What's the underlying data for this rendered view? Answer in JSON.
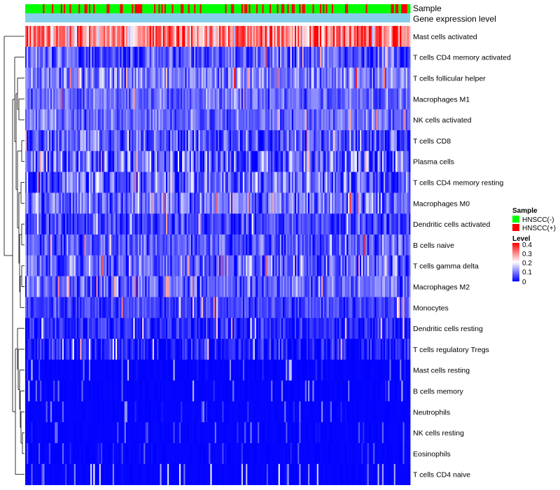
{
  "chart_data": {
    "type": "heatmap",
    "title": "",
    "annotation_tracks": [
      {
        "key": "sample",
        "label": "Sample"
      },
      {
        "key": "level",
        "label": "Gene expression level"
      }
    ],
    "rows": [
      {
        "name": "Mast cells activated",
        "mean": 0.3,
        "spread": 0.1
      },
      {
        "name": "T cells CD4 memory activated",
        "mean": 0.06,
        "spread": 0.06
      },
      {
        "name": "T cells follicular helper",
        "mean": 0.1,
        "spread": 0.06
      },
      {
        "name": "Macrophages M1",
        "mean": 0.08,
        "spread": 0.05
      },
      {
        "name": "NK cells activated",
        "mean": 0.08,
        "spread": 0.05
      },
      {
        "name": "T cells CD8",
        "mean": 0.06,
        "spread": 0.07
      },
      {
        "name": "Plasma cells",
        "mean": 0.07,
        "spread": 0.09
      },
      {
        "name": "T cells CD4 memory resting",
        "mean": 0.07,
        "spread": 0.08
      },
      {
        "name": "Macrophages M0",
        "mean": 0.09,
        "spread": 0.07
      },
      {
        "name": "Dendritic cells activated",
        "mean": 0.05,
        "spread": 0.05
      },
      {
        "name": "B cells naive",
        "mean": 0.06,
        "spread": 0.06
      },
      {
        "name": "T cells gamma delta",
        "mean": 0.07,
        "spread": 0.07
      },
      {
        "name": "Macrophages M2",
        "mean": 0.08,
        "spread": 0.06
      },
      {
        "name": "Monocytes",
        "mean": 0.05,
        "spread": 0.04
      },
      {
        "name": "Dendritic cells resting",
        "mean": 0.03,
        "spread": 0.04
      },
      {
        "name": "T cells regulatory  Tregs",
        "mean": 0.02,
        "spread": 0.05
      },
      {
        "name": "Mast cells resting",
        "mean": 0.01,
        "spread": 0.04
      },
      {
        "name": "B cells memory",
        "mean": 0.01,
        "spread": 0.04
      },
      {
        "name": "Neutrophils",
        "mean": 0.005,
        "spread": 0.03
      },
      {
        "name": "NK cells resting",
        "mean": 0.003,
        "spread": 0.025
      },
      {
        "name": "Eosinophils",
        "mean": 0.002,
        "spread": 0.02
      },
      {
        "name": "T cells CD4 naive",
        "mean": 0.004,
        "spread": 0.05
      }
    ],
    "n_samples": 260,
    "sample_legend": {
      "title": "Sample",
      "entries": [
        {
          "label": "HNSCC(-)",
          "color": "#00ff00"
        },
        {
          "label": "HNSCC(+)",
          "color": "#ff0000"
        }
      ]
    },
    "level_color": "#87ceeb",
    "color_scale": {
      "title": "Level",
      "min": 0,
      "max": 0.4,
      "low_color": "#0000ff",
      "mid_color": "#ffffff",
      "high_color": "#ff0000",
      "ticks": [
        "0.4",
        "0.3",
        "0.2",
        "0.1",
        "0"
      ]
    }
  }
}
